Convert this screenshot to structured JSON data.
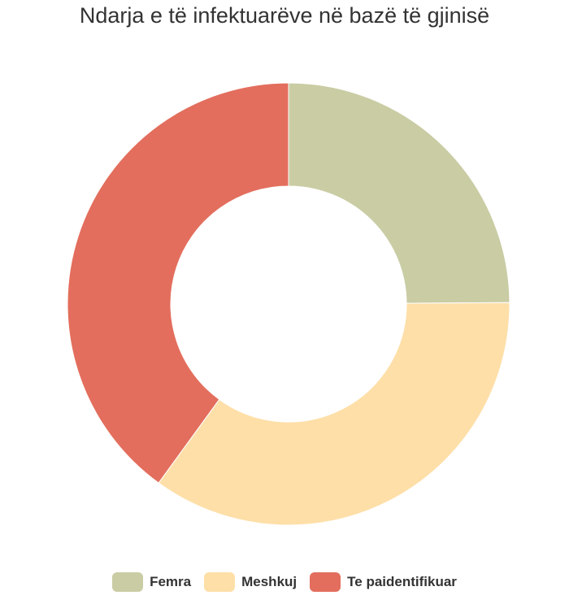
{
  "chart_data": {
    "type": "pie",
    "variant": "donut",
    "title": "Ndarja e të infektuarëve në bazë të gjinisë",
    "categories": [
      "Femra",
      "Meshkuj",
      "Te paidentifikuar"
    ],
    "values": [
      24.9,
      35.1,
      40.0
    ],
    "colors": [
      "#CACCA4",
      "#FEDFA8",
      "#E36E5D"
    ],
    "legend_position": "bottom"
  }
}
